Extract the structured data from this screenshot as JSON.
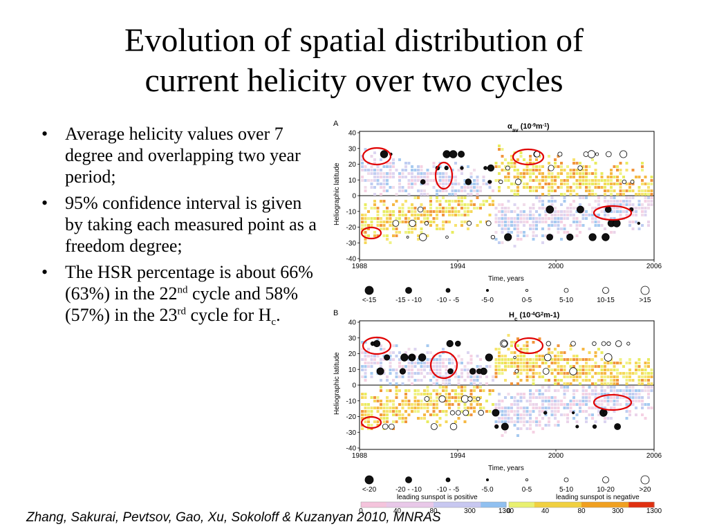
{
  "slide": {
    "title_line1": "Evolution of spatial distribution of",
    "title_line2": "current helicity over two cycles",
    "bullets": [
      {
        "text": "Average helicity values over 7 degree and overlapping two year period;"
      },
      {
        "text": "95% confidence interval is given by taking each measured point as a freedom degree;"
      },
      {
        "pre": "The HSR percentage is about 66% (63%) in the 22",
        "sup1": "nd",
        "mid": " cycle and 58% (57%) in the 23",
        "sup2": "rd",
        "post1": " cycle for H",
        "sub": "c",
        "post2": "."
      }
    ],
    "bullet_symbol": "•",
    "citation": "Zhang, Sakurai, Pevtsov, Gao, Xu, Sokoloff & Kuzanyan 2010, MNRAS"
  },
  "figure": {
    "panels": [
      {
        "label": "A",
        "title_main": "α",
        "title_sub": "av",
        "title_unit_pre": " (10",
        "title_unit_sup1": "-9",
        "title_unit_mid": "m",
        "title_unit_sup2": "-1",
        "title_unit_post": ")",
        "ylabel": "Heliographic latitude",
        "xlabel": "Time, years",
        "yticks": [
          "40",
          "30",
          "20",
          "10",
          "0",
          "-10",
          "-20",
          "-30",
          "-40"
        ],
        "xticks": [
          "1988",
          "1994",
          "2000",
          "2006"
        ],
        "legend_labels": [
          "<-15",
          "-15 - -10",
          "-10 - -5",
          "-5-0",
          "0-5",
          "5-10",
          "10-15",
          ">15"
        ]
      },
      {
        "label": "B",
        "title_main": "H",
        "title_sub": "c",
        "title_unit_pre": " (10",
        "title_unit_sup1": "-4",
        "title_unit_mid": "G",
        "title_unit_sup2": "2",
        "title_unit_post": "m-1)",
        "ylabel": "Heliographic latitude",
        "xlabel": "Time, years",
        "yticks": [
          "40",
          "30",
          "20",
          "10",
          "0",
          "-10",
          "-20",
          "-30",
          "-40"
        ],
        "xticks": [
          "1988",
          "1994",
          "2000",
          "2006"
        ],
        "legend_labels": [
          "<-20",
          "-20 - -10",
          "-10 - -5",
          "-5.0",
          "0-5",
          "5-10",
          "10-20",
          ">20"
        ]
      }
    ],
    "colorbars": {
      "left_caption": "leading sunspot is positive",
      "right_caption": "leading sunspot is negative",
      "ticks": [
        "0",
        "40",
        "80",
        "300",
        "1300"
      ],
      "left_colors": [
        "#f4c4dc",
        "#e8c8e8",
        "#c8c8f0",
        "#90c0f0"
      ],
      "right_colors": [
        "#e8f070",
        "#f0d040",
        "#f0a020",
        "#e03010"
      ]
    },
    "colors": {
      "circle_highlight": "#e00000",
      "negative_fill": "#111111"
    }
  }
}
